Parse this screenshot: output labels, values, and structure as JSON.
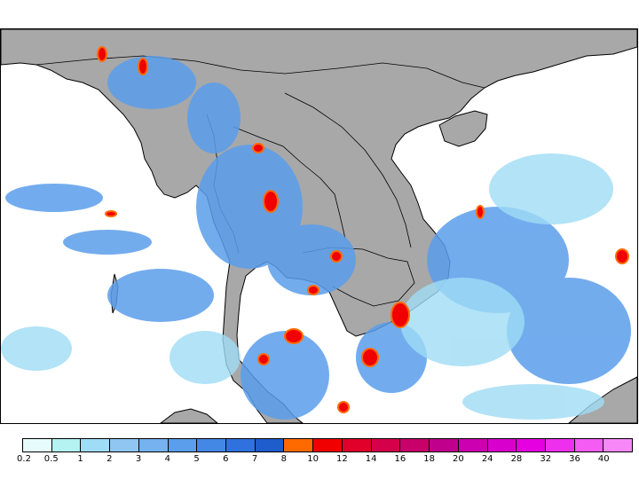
{
  "legend": {
    "ticks": [
      "0.2",
      "0.5",
      "1",
      "2",
      "3",
      "4",
      "5",
      "6",
      "7",
      "8",
      "10",
      "12",
      "14",
      "16",
      "18",
      "20",
      "24",
      "28",
      "32",
      "36",
      "40"
    ],
    "colors": [
      "#e6fbfb",
      "#b5f2f2",
      "#9fdcf5",
      "#8fc6f2",
      "#75b2ef",
      "#5b9eeb",
      "#4488e6",
      "#2f72df",
      "#1f5ccc",
      "#ff6a00",
      "#f00000",
      "#e0002a",
      "#d4004a",
      "#c8006a",
      "#c0008c",
      "#cc00b0",
      "#d800cc",
      "#e400e0",
      "#ee30ee",
      "#f45cf4",
      "#f888f8"
    ]
  },
  "map": {
    "land_color": "#a8a8a8",
    "ocean_color": "#ffffff",
    "coast_color": "#000000"
  }
}
